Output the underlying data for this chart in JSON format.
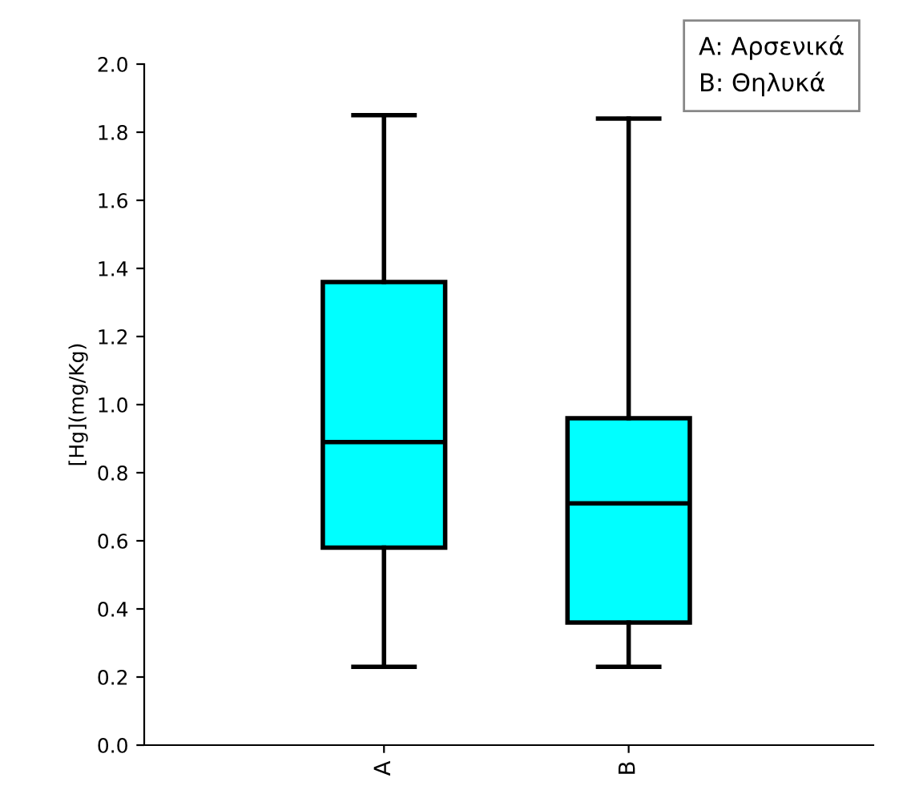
{
  "chart_data": {
    "type": "box",
    "ylabel": "[Hg](mg/Kg)",
    "categories": [
      "A",
      "B"
    ],
    "boxes": [
      {
        "low": 0.23,
        "q1": 0.58,
        "median": 0.89,
        "q3": 1.36,
        "high": 1.85
      },
      {
        "low": 0.23,
        "q1": 0.36,
        "median": 0.71,
        "q3": 0.96,
        "high": 1.84
      }
    ],
    "color": "#00ffff",
    "ylim": [
      0,
      2.0
    ],
    "yticks": [
      {
        "value": 0,
        "label": "0.0"
      },
      {
        "value": 0.2,
        "label": "0.2"
      },
      {
        "value": 0.4,
        "label": "0.4"
      },
      {
        "value": 0.6,
        "label": "0.6"
      },
      {
        "value": 0.8,
        "label": "0.8"
      },
      {
        "value": 1.0,
        "label": "1.0"
      },
      {
        "value": 1.2,
        "label": "1.2"
      },
      {
        "value": 1.4,
        "label": "1.4"
      },
      {
        "value": 1.6,
        "label": "1.6"
      },
      {
        "value": 1.8,
        "label": "1.8"
      },
      {
        "value": 2.0,
        "label": "2.0"
      }
    ],
    "grid": false,
    "annotations": [
      "A: Αρσενικά\nB: Θηλυκά"
    ]
  }
}
